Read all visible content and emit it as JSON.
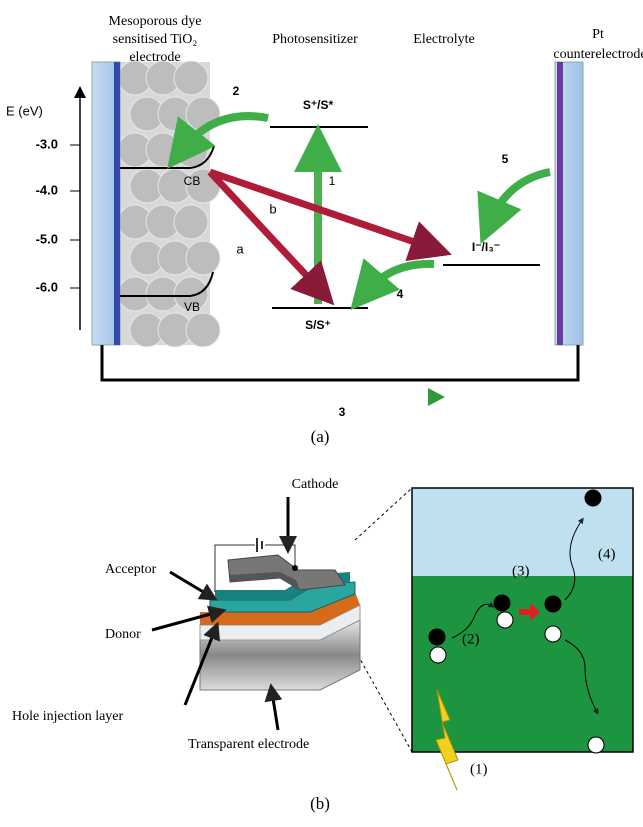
{
  "panel_a": {
    "labels": {
      "electrode_left": [
        "Mesoporous dye",
        "sensitised TiO₂",
        "electrode"
      ],
      "photosensitizer": "Photosensitizer",
      "electrolyte": "Electrolyte",
      "electrode_right": [
        "Pt",
        "counterelectrode"
      ]
    },
    "axis_title": "E (eV)",
    "ticks": [
      "-3.0",
      "-4.0",
      "-5.0",
      "-6.0"
    ],
    "band_labels": {
      "cb": "CB",
      "vb": "VB"
    },
    "levels": {
      "excited": "S⁺/S*",
      "ground": "S/S⁺",
      "redox": "I⁻/I₃⁻"
    },
    "steps": [
      "1",
      "2",
      "3",
      "4",
      "5"
    ],
    "paths": [
      "a",
      "b"
    ],
    "caption": "(a)"
  },
  "panel_b": {
    "labels": {
      "cathode": "Cathode",
      "acceptor": "Acceptor",
      "donor": "Donor",
      "hole_layer": "Hole injection layer",
      "transparent": "Transparent electrode"
    },
    "steps": [
      "(1)",
      "(2)",
      "(3)",
      "(4)"
    ],
    "caption": "(b)"
  }
}
